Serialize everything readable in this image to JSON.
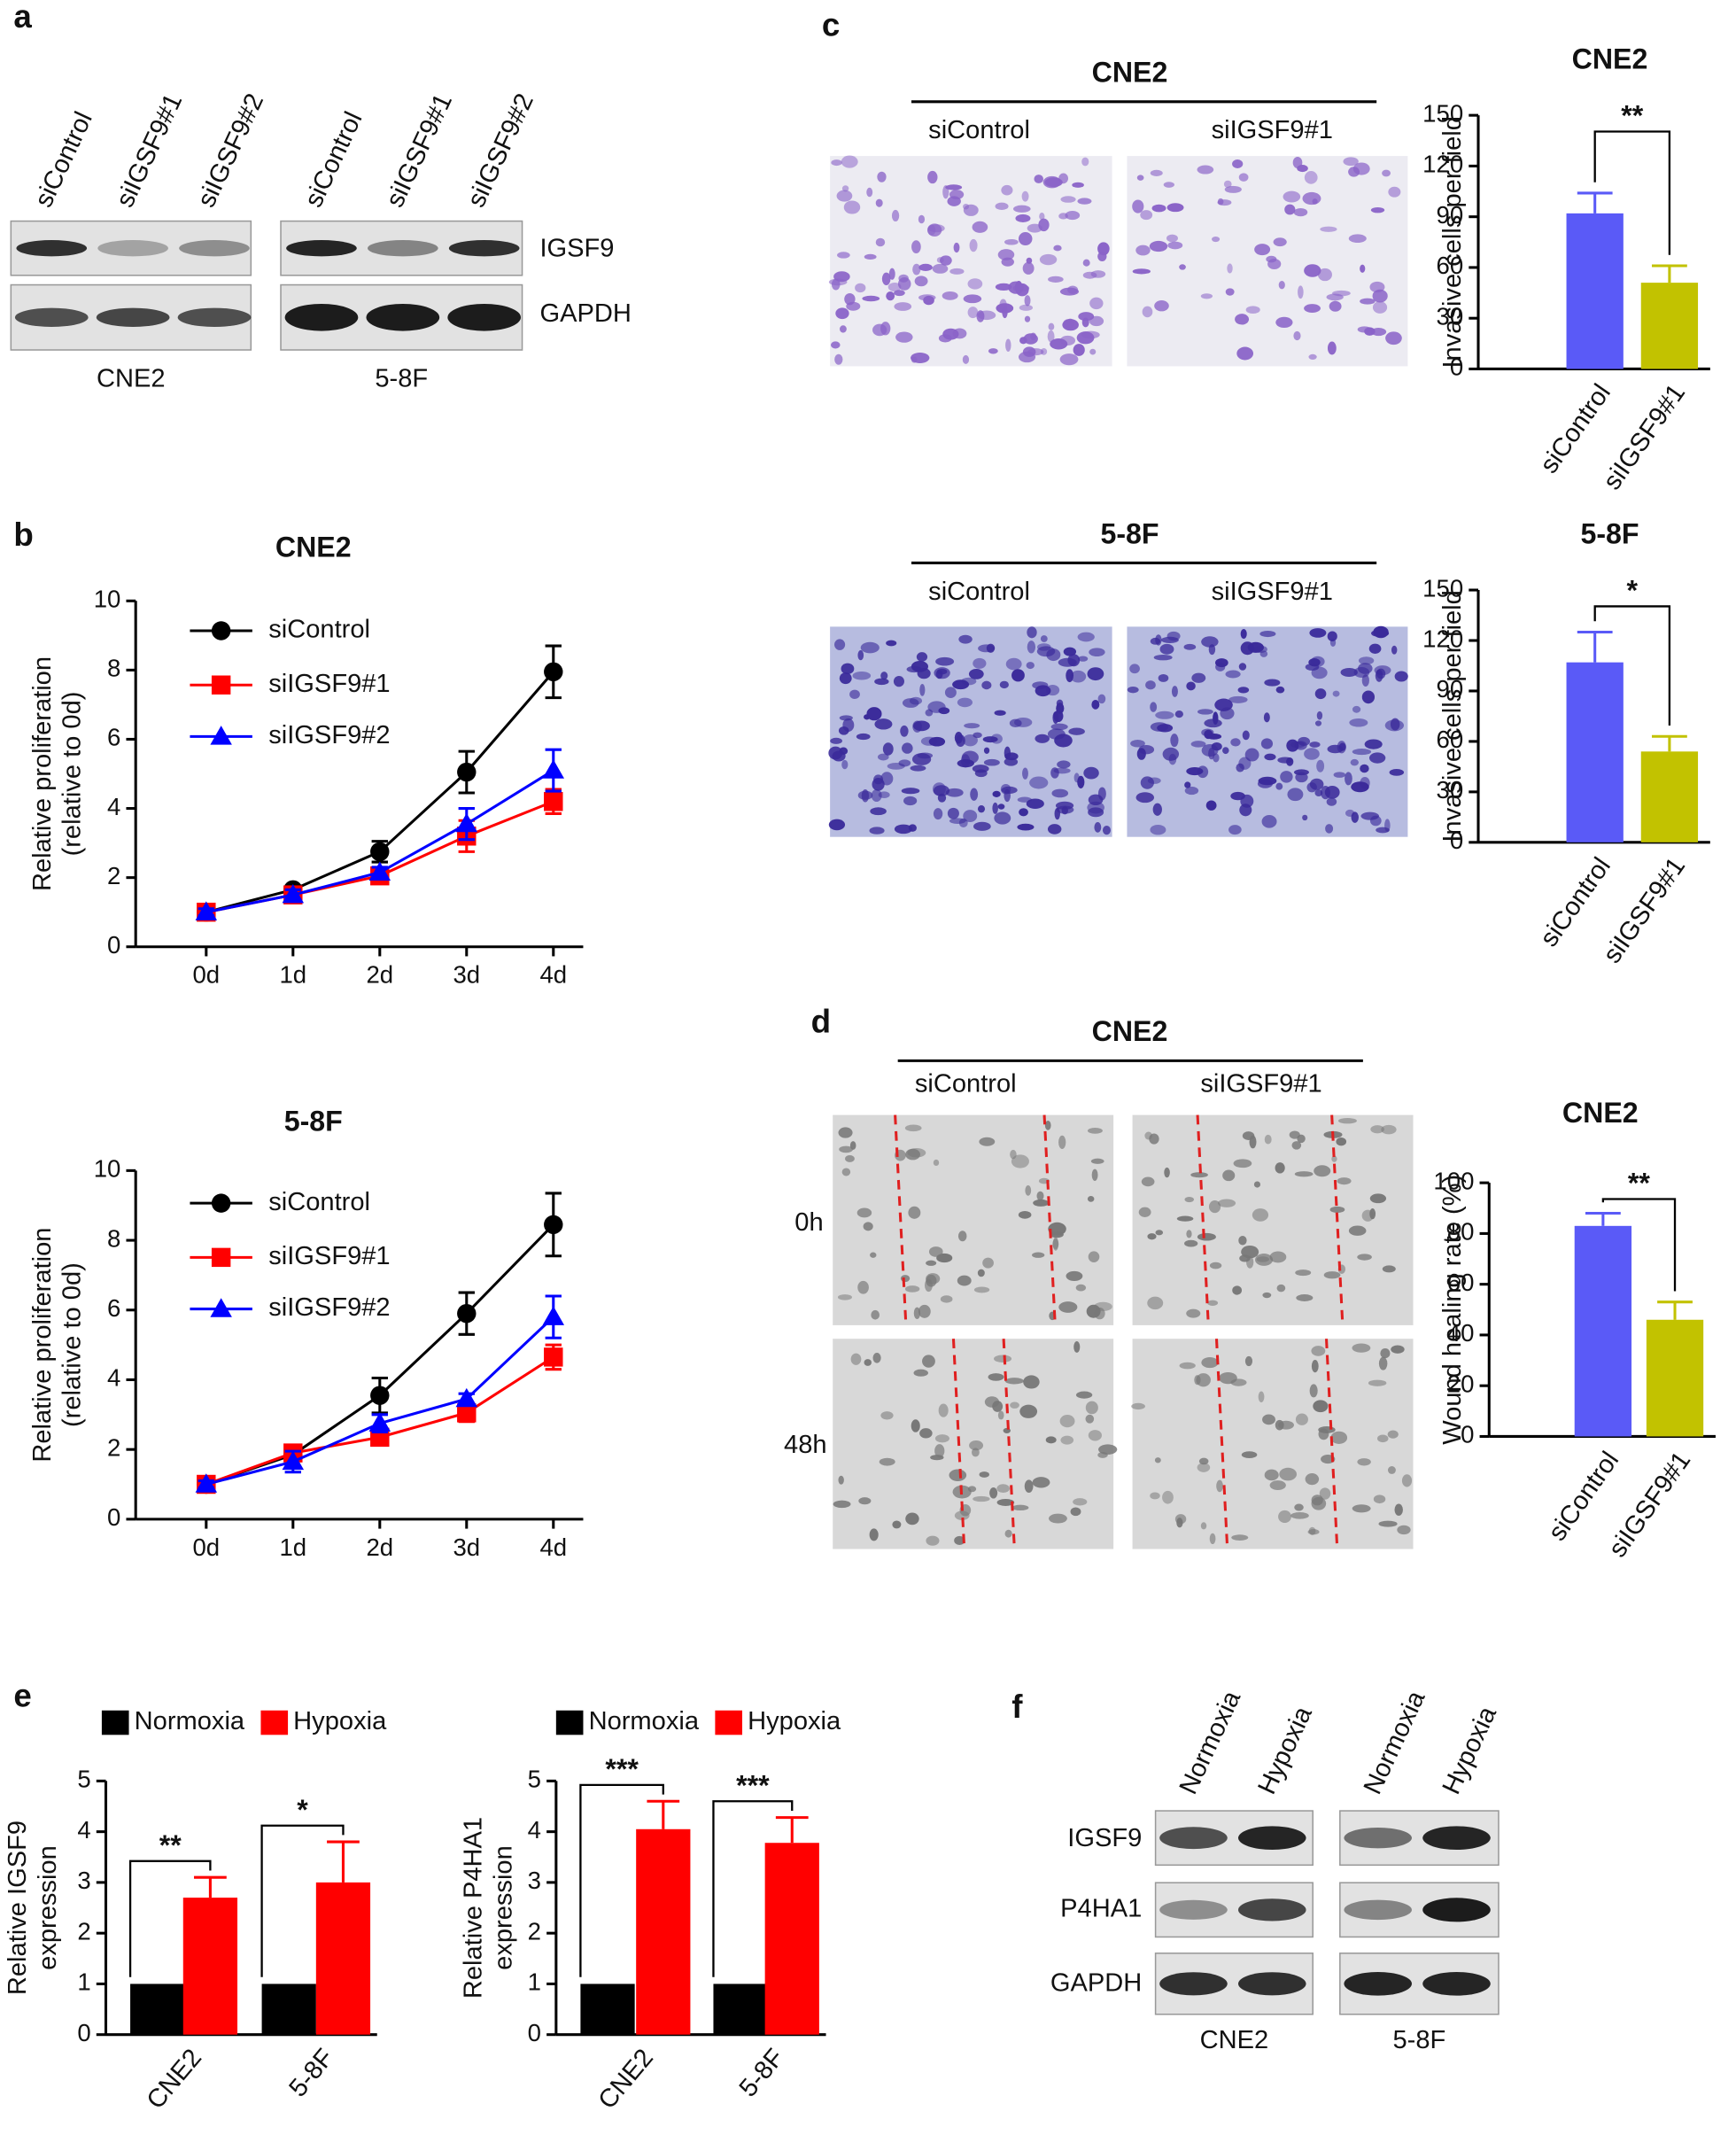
{
  "panel_labels": [
    "a",
    "b",
    "c",
    "d",
    "e",
    "f"
  ],
  "blot_a": {
    "lanes": [
      "siControl",
      "siIGSF9#1",
      "siIGSF9#2"
    ],
    "proteins": [
      "IGSF9",
      "GAPDH"
    ],
    "cell_lines": [
      "CNE2",
      "5-8F"
    ]
  },
  "micrographs_c": [
    {
      "title": "CNE2",
      "conditions": [
        "siControl",
        "siIGSF9#1"
      ]
    },
    {
      "title": "5-8F",
      "conditions": [
        "siControl",
        "siIGSF9#1"
      ]
    }
  ],
  "micrograph_d": {
    "title": "CNE2",
    "conditions": [
      "siControl",
      "siIGSF9#1"
    ],
    "timepoints": [
      "0h",
      "48h"
    ]
  },
  "blot_f": {
    "lanes": [
      "Normoxia",
      "Hypoxia"
    ],
    "proteins": [
      "IGSF9",
      "P4HA1",
      "GAPDH"
    ],
    "cell_lines": [
      "CNE2",
      "5-8F"
    ]
  },
  "chart_data": [
    {
      "type": "line",
      "title": "CNE2",
      "categories": [
        "0d",
        "1d",
        "2d",
        "3d",
        "4d"
      ],
      "series": [
        {
          "name": "siControl",
          "color": "#000000",
          "marker": "circle",
          "values": [
            1,
            1.65,
            2.75,
            5.05,
            7.95
          ],
          "errors": [
            0.1,
            0.1,
            0.3,
            0.6,
            0.75
          ]
        },
        {
          "name": "siIGSF9#1",
          "color": "#ff0000",
          "marker": "square",
          "values": [
            1,
            1.5,
            2.05,
            3.2,
            4.2
          ],
          "errors": [
            0.1,
            0.1,
            0.15,
            0.45,
            0.35
          ]
        },
        {
          "name": "siIGSF9#2",
          "color": "#0000ff",
          "marker": "triangle",
          "values": [
            1,
            1.5,
            2.15,
            3.55,
            5.1
          ],
          "errors": [
            0.1,
            0.15,
            0.15,
            0.45,
            0.6
          ]
        }
      ],
      "ylim": [
        0,
        10
      ],
      "yticks": [
        0,
        2,
        4,
        6,
        8,
        10
      ],
      "y_label": [
        "Relative proliferation",
        "(relative to 0d)"
      ]
    },
    {
      "type": "line",
      "title": "5-8F",
      "categories": [
        "0d",
        "1d",
        "2d",
        "3d",
        "4d"
      ],
      "series": [
        {
          "name": "siControl",
          "color": "#000000",
          "marker": "circle",
          "values": [
            1,
            1.85,
            3.55,
            5.9,
            8.45
          ],
          "errors": [
            0.1,
            0.15,
            0.5,
            0.6,
            0.9
          ]
        },
        {
          "name": "siIGSF9#1",
          "color": "#ff0000",
          "marker": "square",
          "values": [
            1,
            1.9,
            2.35,
            3.05,
            4.65
          ],
          "errors": [
            0.1,
            0.15,
            0.2,
            0.25,
            0.35
          ]
        },
        {
          "name": "siIGSF9#2",
          "color": "#0000ff",
          "marker": "triangle",
          "values": [
            1,
            1.65,
            2.75,
            3.45,
            5.8
          ],
          "errors": [
            0.1,
            0.3,
            0.25,
            0.15,
            0.6
          ]
        }
      ],
      "ylim": [
        0,
        10
      ],
      "yticks": [
        0,
        2,
        4,
        6,
        8,
        10
      ],
      "y_label": [
        "Relative proliferation",
        "(relative to 0d)"
      ]
    },
    {
      "type": "bar",
      "title": "CNE2",
      "categories": [
        "siControl",
        "siIGSF9#1"
      ],
      "values": [
        92,
        51
      ],
      "errors": [
        12,
        10
      ],
      "colors": [
        "#5a5af7",
        "#c2c200"
      ],
      "ylim": [
        0,
        150
      ],
      "yticks": [
        0,
        30,
        60,
        90,
        120,
        150
      ],
      "y_label": [
        "Invasive cells per field"
      ],
      "significance": "**"
    },
    {
      "type": "bar",
      "title": "5-8F",
      "categories": [
        "siControl",
        "siIGSF9#1"
      ],
      "values": [
        107,
        54
      ],
      "errors": [
        18,
        9
      ],
      "colors": [
        "#5a5af7",
        "#c2c200"
      ],
      "ylim": [
        0,
        150
      ],
      "yticks": [
        0,
        30,
        60,
        90,
        120,
        150
      ],
      "y_label": [
        "Invasive cells per field"
      ],
      "significance": "*"
    },
    {
      "type": "bar",
      "title": "CNE2",
      "categories": [
        "siControl",
        "siIGSF9#1"
      ],
      "values": [
        83,
        46
      ],
      "errors": [
        5,
        7
      ],
      "colors": [
        "#5a5af7",
        "#c2c200"
      ],
      "ylim": [
        0,
        100
      ],
      "yticks": [
        0,
        20,
        40,
        60,
        80,
        100
      ],
      "y_label": [
        "Wound healing rate (%)"
      ],
      "significance": "**"
    },
    {
      "type": "grouped_bar",
      "categories": [
        "CNE2",
        "5-8F"
      ],
      "series": [
        {
          "name": "Normoxia",
          "color": "#000000",
          "values": [
            1,
            1
          ]
        },
        {
          "name": "Hypoxia",
          "color": "#ff0000",
          "values": [
            2.7,
            3.0
          ],
          "errors": [
            0.4,
            0.8
          ]
        }
      ],
      "ylim": [
        0,
        5
      ],
      "yticks": [
        0,
        1,
        2,
        3,
        4,
        5
      ],
      "y_label": [
        "Relative IGSF9",
        "expression"
      ],
      "significance": [
        "**",
        "*"
      ]
    },
    {
      "type": "grouped_bar",
      "categories": [
        "CNE2",
        "5-8F"
      ],
      "series": [
        {
          "name": "Normoxia",
          "color": "#000000",
          "values": [
            1,
            1
          ]
        },
        {
          "name": "Hypoxia",
          "color": "#ff0000",
          "values": [
            4.05,
            3.78
          ],
          "errors": [
            0.55,
            0.5
          ]
        }
      ],
      "ylim": [
        0,
        5
      ],
      "yticks": [
        0,
        1,
        2,
        3,
        4,
        5
      ],
      "y_label": [
        "Relative P4HA1",
        "expression"
      ],
      "significance": [
        "***",
        "***"
      ]
    }
  ]
}
